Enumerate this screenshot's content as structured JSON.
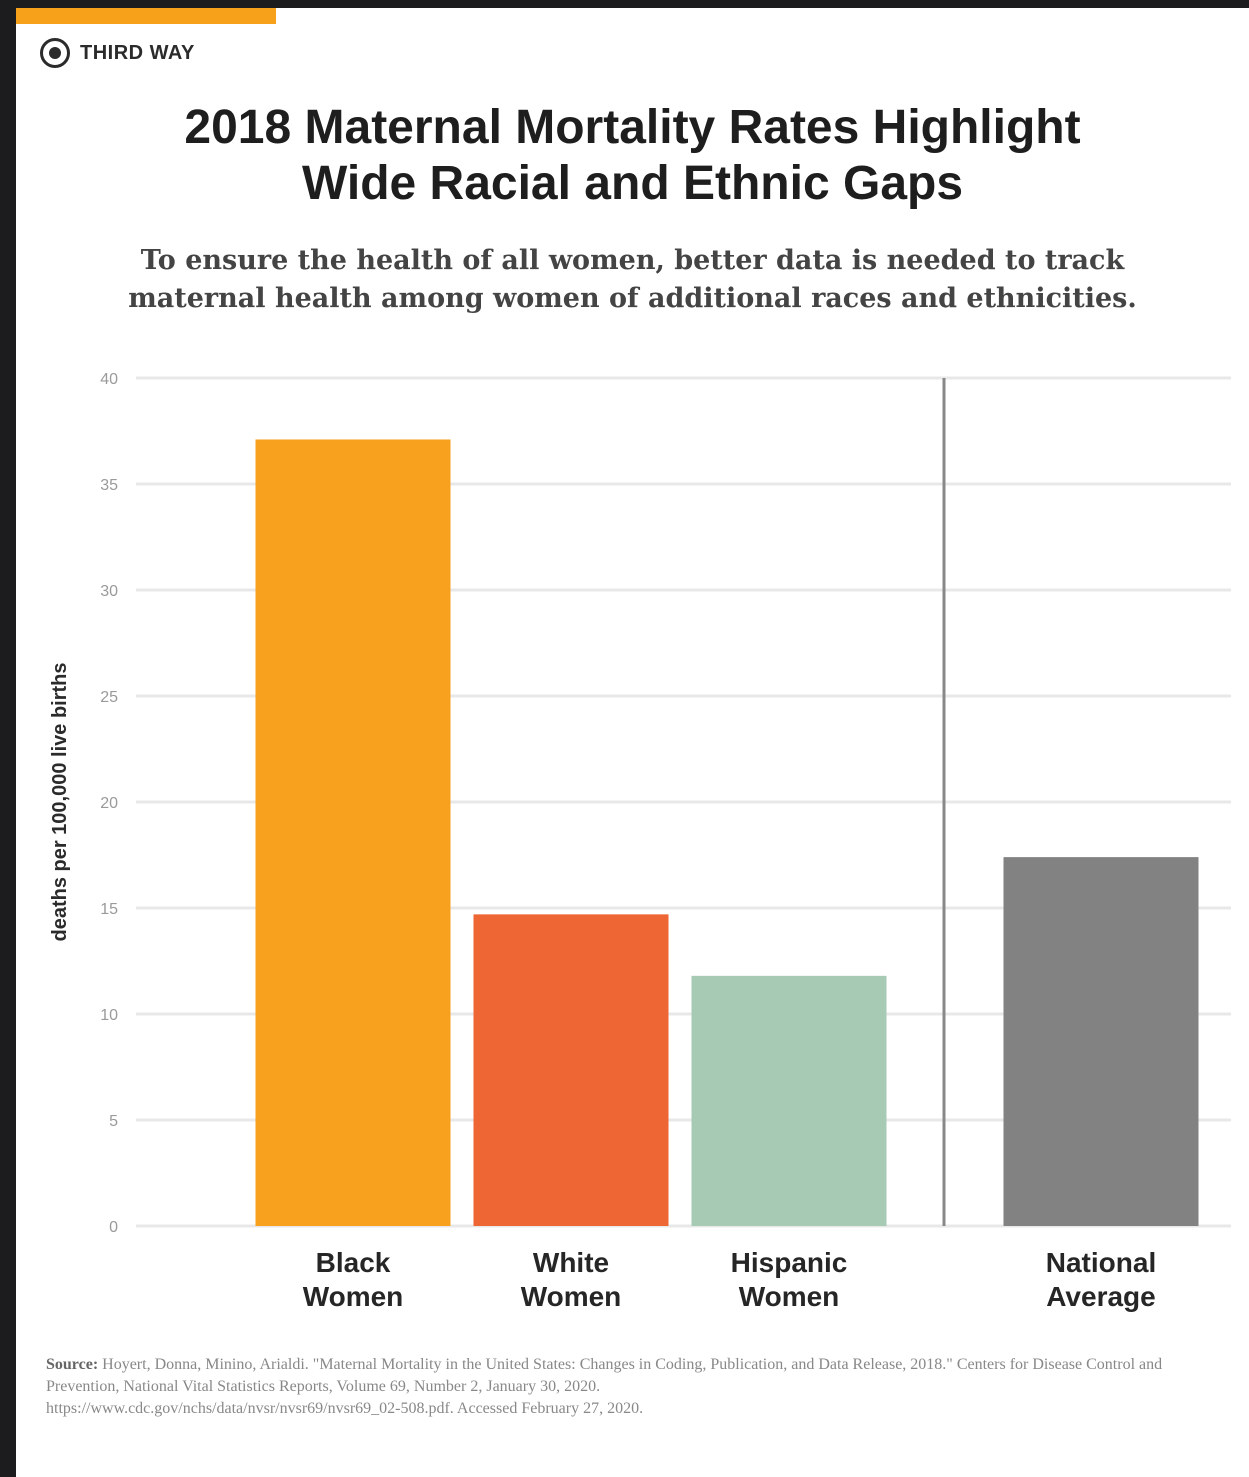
{
  "brand": {
    "name": "THIRD WAY"
  },
  "title": {
    "line1": "2018 Maternal Mortality Rates Highlight",
    "line2": "Wide Racial and Ethnic Gaps"
  },
  "subtitle": {
    "line1": "To ensure the health of all women, better data is needed to track",
    "line2": "maternal health among women of additional races and ethnicities."
  },
  "colors": {
    "accent": "#f7a11a",
    "gridline": "#e8e8e8",
    "divider": "#888888"
  },
  "chart_data": {
    "type": "bar",
    "title": "2018 Maternal Mortality Rates Highlight Wide Racial and Ethnic Gaps",
    "ylabel": "deaths per 100,000 live births",
    "xlabel": "",
    "ylim": [
      0,
      40
    ],
    "yticks": [
      0,
      5,
      10,
      15,
      20,
      25,
      30,
      35,
      40
    ],
    "grid": true,
    "legend": "none",
    "categories": [
      {
        "line1": "Black",
        "line2": "Women"
      },
      {
        "line1": "White",
        "line2": "Women"
      },
      {
        "line1": "Hispanic",
        "line2": "Women"
      },
      {
        "line1": "National",
        "line2": "Average"
      }
    ],
    "values": [
      37.1,
      14.7,
      11.8,
      17.4
    ],
    "colors": [
      "#f7a11f",
      "#ee6633",
      "#a7cab5",
      "#828282"
    ]
  },
  "source": {
    "label": "Source:",
    "text": "Hoyert, Donna, Minino, Arialdi. \"Maternal Mortality in the United States: Changes in Coding, Publication, and Data Release, 2018.\" Centers for Disease Control and Prevention, National Vital Statistics Reports, Volume 69, Number 2, January 30, 2020.",
    "url": "https://www.cdc.gov/nchs/data/nvsr/nvsr69/nvsr69_02-508.pdf. Accessed February 27, 2020."
  }
}
